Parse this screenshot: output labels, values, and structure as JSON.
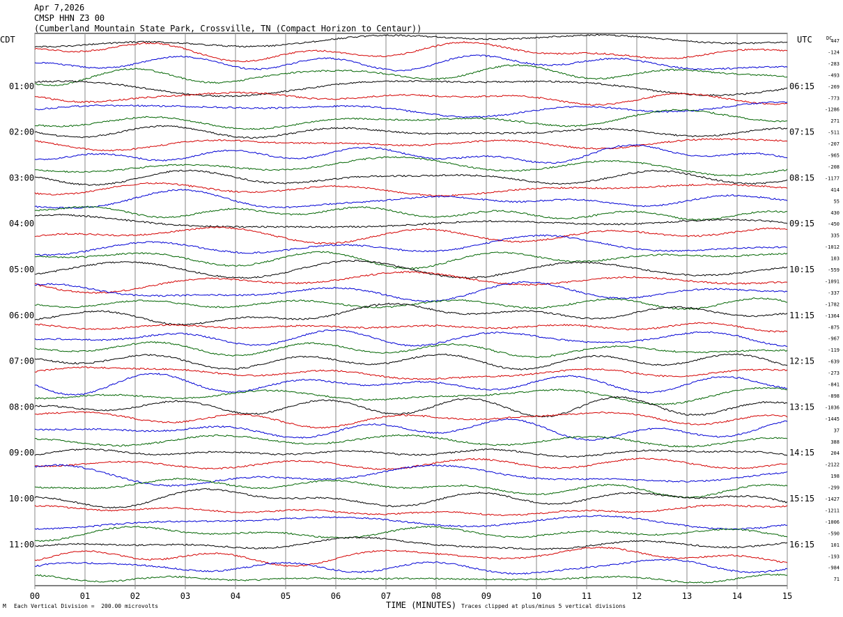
{
  "header": {
    "date": "Apr 7,2026",
    "channel": "CMSP HHN Z3 00",
    "station": "(Cumberland Mountain State Park, Crossville, TN (Compact Horizon to Centaur))"
  },
  "footer": {
    "scale_note": "Each Vertical Division =  200.00 microvolts",
    "clip_note": "Traces clipped at plus/minus 5 vertical divisions",
    "corner_mark": "M"
  },
  "chart_data": {
    "type": "line",
    "title": "CMSP HHN Z3 00",
    "xlabel": "TIME (MINUTES)",
    "x_ticks": [
      "00",
      "01",
      "02",
      "03",
      "04",
      "05",
      "06",
      "07",
      "08",
      "09",
      "10",
      "11",
      "12",
      "13",
      "14",
      "15"
    ],
    "xlim": [
      0,
      15
    ],
    "left_axis_label": "CDT",
    "right_axis_label": "UTC",
    "dc_label": "DC",
    "left_time_labels": [
      "01:00",
      "02:00",
      "03:00",
      "04:00",
      "05:00",
      "06:00",
      "07:00",
      "08:00",
      "09:00",
      "10:00",
      "11:00"
    ],
    "right_time_labels": [
      "06:15",
      "07:15",
      "08:15",
      "09:15",
      "10:15",
      "11:15",
      "12:15",
      "13:15",
      "14:15",
      "15:15",
      "16:15"
    ],
    "dc_offsets": [
      447,
      -124,
      -283,
      -493,
      -269,
      -773,
      -1286,
      271,
      -511,
      -207,
      -965,
      -208,
      -1177,
      414,
      55,
      430,
      -450,
      335,
      -1012,
      103,
      -559,
      -1091,
      -337,
      -1782,
      -1364,
      -875,
      -967,
      -119,
      -639,
      -273,
      -841,
      -898,
      -1036,
      -1445,
      37,
      388,
      204,
      -2122,
      198,
      -299,
      -1427,
      -1211,
      -1006,
      -590,
      101,
      -193,
      -984,
      71
    ],
    "trace_colors": [
      "#000000",
      "#d40000",
      "#0000d4",
      "#006400"
    ],
    "series_count": 48,
    "clip_divisions": 5,
    "grid": true
  }
}
